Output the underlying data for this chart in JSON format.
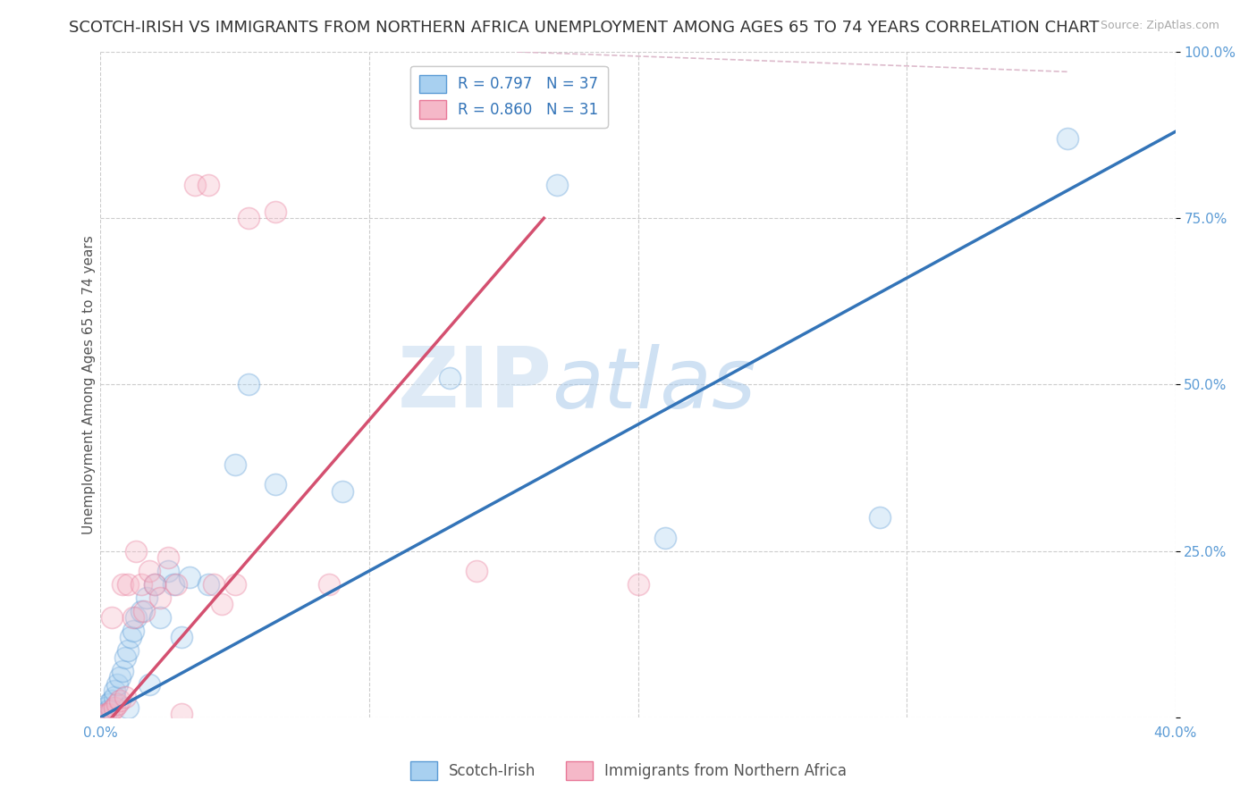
{
  "title": "SCOTCH-IRISH VS IMMIGRANTS FROM NORTHERN AFRICA UNEMPLOYMENT AMONG AGES 65 TO 74 YEARS CORRELATION CHART",
  "source": "Source: ZipAtlas.com",
  "ylabel": "Unemployment Among Ages 65 to 74 years",
  "xlim": [
    0,
    0.4
  ],
  "ylim": [
    0,
    1.0
  ],
  "xticks": [
    0.0,
    0.05,
    0.1,
    0.15,
    0.2,
    0.25,
    0.3,
    0.35,
    0.4
  ],
  "yticks": [
    0.0,
    0.25,
    0.5,
    0.75,
    1.0
  ],
  "blue_color": "#a8d0f0",
  "pink_color": "#f5b8c8",
  "blue_edge_color": "#5b9bd5",
  "pink_edge_color": "#e87898",
  "blue_line_color": "#3374b8",
  "pink_line_color": "#d45070",
  "legend_R_blue": "0.797",
  "legend_N_blue": "37",
  "legend_R_pink": "0.860",
  "legend_N_pink": "31",
  "legend_label_blue": "Scotch-Irish",
  "legend_label_pink": "Immigrants from Northern Africa",
  "watermark_zip": "ZIP",
  "watermark_atlas": "atlas",
  "blue_scatter_x": [
    0.001,
    0.001,
    0.002,
    0.002,
    0.003,
    0.003,
    0.004,
    0.005,
    0.005,
    0.006,
    0.007,
    0.008,
    0.009,
    0.01,
    0.01,
    0.011,
    0.012,
    0.013,
    0.015,
    0.017,
    0.018,
    0.02,
    0.022,
    0.025,
    0.027,
    0.03,
    0.033,
    0.04,
    0.05,
    0.055,
    0.065,
    0.09,
    0.13,
    0.17,
    0.21,
    0.29,
    0.36
  ],
  "blue_scatter_y": [
    0.002,
    0.005,
    0.008,
    0.015,
    0.01,
    0.02,
    0.025,
    0.03,
    0.04,
    0.05,
    0.06,
    0.07,
    0.09,
    0.1,
    0.015,
    0.12,
    0.13,
    0.15,
    0.16,
    0.18,
    0.05,
    0.2,
    0.15,
    0.22,
    0.2,
    0.12,
    0.21,
    0.2,
    0.38,
    0.5,
    0.35,
    0.34,
    0.51,
    0.8,
    0.27,
    0.3,
    0.87
  ],
  "pink_scatter_x": [
    0.001,
    0.002,
    0.003,
    0.004,
    0.004,
    0.005,
    0.006,
    0.007,
    0.008,
    0.009,
    0.01,
    0.012,
    0.013,
    0.015,
    0.016,
    0.018,
    0.02,
    0.022,
    0.025,
    0.028,
    0.03,
    0.035,
    0.04,
    0.042,
    0.045,
    0.05,
    0.055,
    0.065,
    0.085,
    0.14,
    0.2
  ],
  "pink_scatter_y": [
    0.002,
    0.005,
    0.005,
    0.01,
    0.15,
    0.015,
    0.02,
    0.025,
    0.2,
    0.03,
    0.2,
    0.15,
    0.25,
    0.2,
    0.16,
    0.22,
    0.2,
    0.18,
    0.24,
    0.2,
    0.005,
    0.8,
    0.8,
    0.2,
    0.17,
    0.2,
    0.75,
    0.76,
    0.2,
    0.22,
    0.2
  ],
  "blue_line_x0": 0.0,
  "blue_line_x1": 0.4,
  "blue_line_y0": 0.0,
  "blue_line_y1": 0.88,
  "pink_line_x0": 0.0,
  "pink_line_x1": 0.165,
  "pink_line_y0": -0.02,
  "pink_line_y1": 0.75,
  "ref_line_show": true,
  "ref_line_x": [
    0.12,
    0.4
  ],
  "ref_line_y": [
    0.97,
    0.97
  ],
  "background_color": "#ffffff",
  "grid_color": "#cccccc",
  "title_fontsize": 13,
  "axis_label_fontsize": 11,
  "tick_fontsize": 11,
  "scatter_size": 300,
  "scatter_alpha": 0.35,
  "line_width": 2.5
}
